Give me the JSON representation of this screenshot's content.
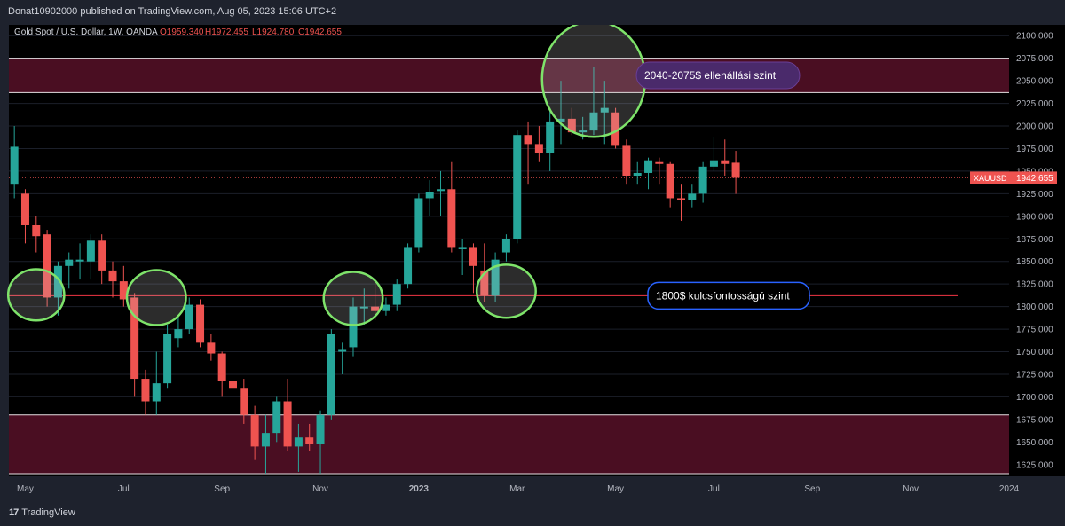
{
  "publisher": "Donat10902000 published on TradingView.com, Aug 05, 2023 15:06 UTC+2",
  "footer": {
    "brand": "TradingView",
    "logo": "17"
  },
  "chart_data": {
    "type": "candlestick",
    "symbol_line": {
      "name": "Gold Spot / U.S. Dollar, 1W, OANDA",
      "open": "O1959.340",
      "high": "H1972.455",
      "low": "L1924.780",
      "close": "C1942.655"
    },
    "ylim": [
      1612,
      2112
    ],
    "yticks": [
      1625,
      1650,
      1675,
      1700,
      1725,
      1750,
      1775,
      1800,
      1825,
      1850,
      1875,
      1900,
      1925,
      1950,
      1975,
      2000,
      2025,
      2050,
      2075,
      2100
    ],
    "ytick_labels": [
      "1625.000",
      "1650.000",
      "1675.000",
      "1700.000",
      "1725.000",
      "1750.000",
      "1775.000",
      "1800.000",
      "1825.000",
      "1850.000",
      "1875.000",
      "1900.000",
      "1925.000",
      "1950.000",
      "1975.000",
      "2000.000",
      "2025.000",
      "2050.000",
      "2075.000",
      "2100.000"
    ],
    "xticks": [
      {
        "label": "May",
        "week": 1.5
      },
      {
        "label": "Jul",
        "week": 10.5
      },
      {
        "label": "Sep",
        "week": 19.5
      },
      {
        "label": "Nov",
        "week": 28.5
      },
      {
        "label": "2023",
        "week": 37.5
      },
      {
        "label": "Mar",
        "week": 46.5
      },
      {
        "label": "May",
        "week": 55.5
      },
      {
        "label": "Jul",
        "week": 64.5
      },
      {
        "label": "Sep",
        "week": 73.5
      },
      {
        "label": "Nov",
        "week": 82.5
      },
      {
        "label": "2024",
        "week": 91.5
      }
    ],
    "total_weeks": 91.5,
    "candles": [
      {
        "o": 1935,
        "h": 2000,
        "l": 1920,
        "c": 1977
      },
      {
        "o": 1925,
        "h": 1930,
        "l": 1870,
        "c": 1890
      },
      {
        "o": 1890,
        "h": 1900,
        "l": 1860,
        "c": 1878
      },
      {
        "o": 1880,
        "h": 1885,
        "l": 1800,
        "c": 1810
      },
      {
        "o": 1810,
        "h": 1850,
        "l": 1790,
        "c": 1845
      },
      {
        "o": 1845,
        "h": 1860,
        "l": 1820,
        "c": 1852
      },
      {
        "o": 1850,
        "h": 1870,
        "l": 1830,
        "c": 1852
      },
      {
        "o": 1850,
        "h": 1880,
        "l": 1830,
        "c": 1873
      },
      {
        "o": 1873,
        "h": 1880,
        "l": 1825,
        "c": 1840
      },
      {
        "o": 1840,
        "h": 1850,
        "l": 1810,
        "c": 1828
      },
      {
        "o": 1828,
        "h": 1845,
        "l": 1800,
        "c": 1808
      },
      {
        "o": 1810,
        "h": 1815,
        "l": 1700,
        "c": 1720
      },
      {
        "o": 1720,
        "h": 1730,
        "l": 1680,
        "c": 1695
      },
      {
        "o": 1695,
        "h": 1750,
        "l": 1680,
        "c": 1715
      },
      {
        "o": 1715,
        "h": 1780,
        "l": 1710,
        "c": 1770
      },
      {
        "o": 1765,
        "h": 1790,
        "l": 1755,
        "c": 1775
      },
      {
        "o": 1775,
        "h": 1810,
        "l": 1770,
        "c": 1802
      },
      {
        "o": 1802,
        "h": 1808,
        "l": 1755,
        "c": 1760
      },
      {
        "o": 1760,
        "h": 1770,
        "l": 1740,
        "c": 1748
      },
      {
        "o": 1748,
        "h": 1750,
        "l": 1700,
        "c": 1718
      },
      {
        "o": 1718,
        "h": 1740,
        "l": 1705,
        "c": 1710
      },
      {
        "o": 1710,
        "h": 1720,
        "l": 1670,
        "c": 1680
      },
      {
        "o": 1680,
        "h": 1690,
        "l": 1630,
        "c": 1645
      },
      {
        "o": 1645,
        "h": 1680,
        "l": 1615,
        "c": 1660
      },
      {
        "o": 1660,
        "h": 1700,
        "l": 1650,
        "c": 1695
      },
      {
        "o": 1695,
        "h": 1720,
        "l": 1640,
        "c": 1645
      },
      {
        "o": 1645,
        "h": 1670,
        "l": 1617,
        "c": 1655
      },
      {
        "o": 1655,
        "h": 1670,
        "l": 1640,
        "c": 1648
      },
      {
        "o": 1648,
        "h": 1685,
        "l": 1615,
        "c": 1680
      },
      {
        "o": 1680,
        "h": 1775,
        "l": 1675,
        "c": 1770
      },
      {
        "o": 1750,
        "h": 1760,
        "l": 1725,
        "c": 1752
      },
      {
        "o": 1755,
        "h": 1810,
        "l": 1745,
        "c": 1800
      },
      {
        "o": 1798,
        "h": 1820,
        "l": 1780,
        "c": 1800
      },
      {
        "o": 1800,
        "h": 1825,
        "l": 1785,
        "c": 1795
      },
      {
        "o": 1795,
        "h": 1810,
        "l": 1790,
        "c": 1802
      },
      {
        "o": 1802,
        "h": 1830,
        "l": 1795,
        "c": 1825
      },
      {
        "o": 1825,
        "h": 1870,
        "l": 1820,
        "c": 1865
      },
      {
        "o": 1865,
        "h": 1925,
        "l": 1860,
        "c": 1920
      },
      {
        "o": 1920,
        "h": 1940,
        "l": 1900,
        "c": 1927
      },
      {
        "o": 1928,
        "h": 1950,
        "l": 1900,
        "c": 1930
      },
      {
        "o": 1930,
        "h": 1960,
        "l": 1860,
        "c": 1865
      },
      {
        "o": 1865,
        "h": 1875,
        "l": 1835,
        "c": 1865
      },
      {
        "o": 1865,
        "h": 1870,
        "l": 1815,
        "c": 1845
      },
      {
        "o": 1840,
        "h": 1870,
        "l": 1805,
        "c": 1812
      },
      {
        "o": 1812,
        "h": 1860,
        "l": 1805,
        "c": 1852
      },
      {
        "o": 1860,
        "h": 1880,
        "l": 1850,
        "c": 1875
      },
      {
        "o": 1875,
        "h": 1995,
        "l": 1870,
        "c": 1990
      },
      {
        "o": 1990,
        "h": 2005,
        "l": 1935,
        "c": 1980
      },
      {
        "o": 1980,
        "h": 2000,
        "l": 1960,
        "c": 1970
      },
      {
        "o": 1970,
        "h": 2020,
        "l": 1950,
        "c": 2005
      },
      {
        "o": 2005,
        "h": 2050,
        "l": 1980,
        "c": 2008
      },
      {
        "o": 2008,
        "h": 2020,
        "l": 1990,
        "c": 1993
      },
      {
        "o": 1993,
        "h": 2010,
        "l": 1985,
        "c": 1995
      },
      {
        "o": 1995,
        "h": 2065,
        "l": 1990,
        "c": 2015
      },
      {
        "o": 2015,
        "h": 2050,
        "l": 1980,
        "c": 2020
      },
      {
        "o": 2015,
        "h": 2020,
        "l": 1975,
        "c": 1978
      },
      {
        "o": 1978,
        "h": 1985,
        "l": 1935,
        "c": 1945
      },
      {
        "o": 1945,
        "h": 1960,
        "l": 1935,
        "c": 1948
      },
      {
        "o": 1948,
        "h": 1965,
        "l": 1930,
        "c": 1962
      },
      {
        "o": 1960,
        "h": 1965,
        "l": 1935,
        "c": 1958
      },
      {
        "o": 1958,
        "h": 1960,
        "l": 1910,
        "c": 1920
      },
      {
        "o": 1920,
        "h": 1935,
        "l": 1895,
        "c": 1918
      },
      {
        "o": 1918,
        "h": 1935,
        "l": 1910,
        "c": 1925
      },
      {
        "o": 1925,
        "h": 1960,
        "l": 1915,
        "c": 1955
      },
      {
        "o": 1955,
        "h": 1988,
        "l": 1950,
        "c": 1962
      },
      {
        "o": 1962,
        "h": 1985,
        "l": 1945,
        "c": 1958
      },
      {
        "o": 1959.34,
        "h": 1972.455,
        "l": 1924.78,
        "c": 1942.655
      }
    ],
    "zones": [
      {
        "from": 2037,
        "to": 2075,
        "label": "2040-2075$ ellenállási szint"
      },
      {
        "from": 1615,
        "to": 1680
      }
    ],
    "support_line": {
      "value": 1812,
      "label": "1800$ kulcsfontosságú szint"
    },
    "last_price": {
      "label": "XAUUSD",
      "value": "1942.655",
      "price": 1942.655
    },
    "circles": [
      {
        "week": 2.5,
        "price": 1813,
        "rw": 1.9,
        "rp": 27
      },
      {
        "week": 13.5,
        "price": 1810,
        "rw": 2.0,
        "rp": 29
      },
      {
        "week": 31.5,
        "price": 1809,
        "rw": 2.0,
        "rp": 28
      },
      {
        "week": 45.5,
        "price": 1817,
        "rw": 2.0,
        "rp": 28
      },
      {
        "week": 53.5,
        "price": 2052,
        "rw": 3.5,
        "rp": 61
      }
    ],
    "colors": {
      "up": "#26a69a",
      "down": "#ef5350",
      "zone": "#4a0e22",
      "zone_line": "#e7e0e3",
      "support": "#f23645",
      "circle": "#7ee36a",
      "label_resist_bg": "#4a2a6b",
      "label_resist_border": "#6a3e95",
      "label_support_border": "#2962ff",
      "price_tag": "#ef5350",
      "grid": "#1b1f2a"
    }
  }
}
